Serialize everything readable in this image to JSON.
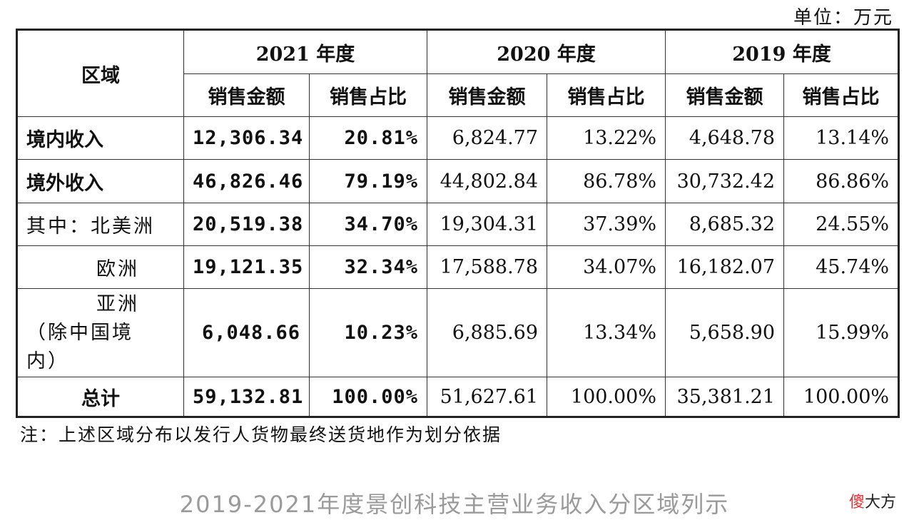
{
  "unit_label": "单位：万元",
  "header": {
    "region": "区域",
    "years": [
      "2021 年度",
      "2020 年度",
      "2019 年度"
    ],
    "sub": [
      "销售金额",
      "销售占比",
      "销售金额",
      "销售占比",
      "销售金额",
      "销售占比"
    ]
  },
  "rows": [
    {
      "region": "境内收入",
      "v": [
        "12,306.34",
        "20.81%",
        "6,824.77",
        "13.22%",
        "4,648.78",
        "13.14%"
      ]
    },
    {
      "region": "境外收入",
      "v": [
        "46,826.46",
        "79.19%",
        "44,802.84",
        "86.78%",
        "30,732.42",
        "86.86%"
      ]
    },
    {
      "region": "其中：北美洲",
      "v": [
        "20,519.38",
        "34.70%",
        "19,304.31",
        "37.39%",
        "8,685.32",
        "24.55%"
      ]
    },
    {
      "region": "欧洲",
      "v": [
        "19,121.35",
        "32.34%",
        "17,588.78",
        "34.07%",
        "16,182.07",
        "45.74%"
      ]
    },
    {
      "region_lines": [
        "亚洲",
        "（除中国境",
        "内）"
      ],
      "v": [
        "6,048.66",
        "10.23%",
        "6,885.69",
        "13.34%",
        "5,658.90",
        "15.99%"
      ]
    },
    {
      "region": "总计",
      "v": [
        "59,132.81",
        "100.00%",
        "51,627.61",
        "100.00%",
        "35,381.21",
        "100.00%"
      ]
    }
  ],
  "note": "注：上述区域分布以发行人货物最终送货地作为划分依据",
  "caption": "2019-2021年度景创科技主营业务收入分区域列示",
  "watermark": {
    "red": "傻",
    "rest": "大方"
  }
}
